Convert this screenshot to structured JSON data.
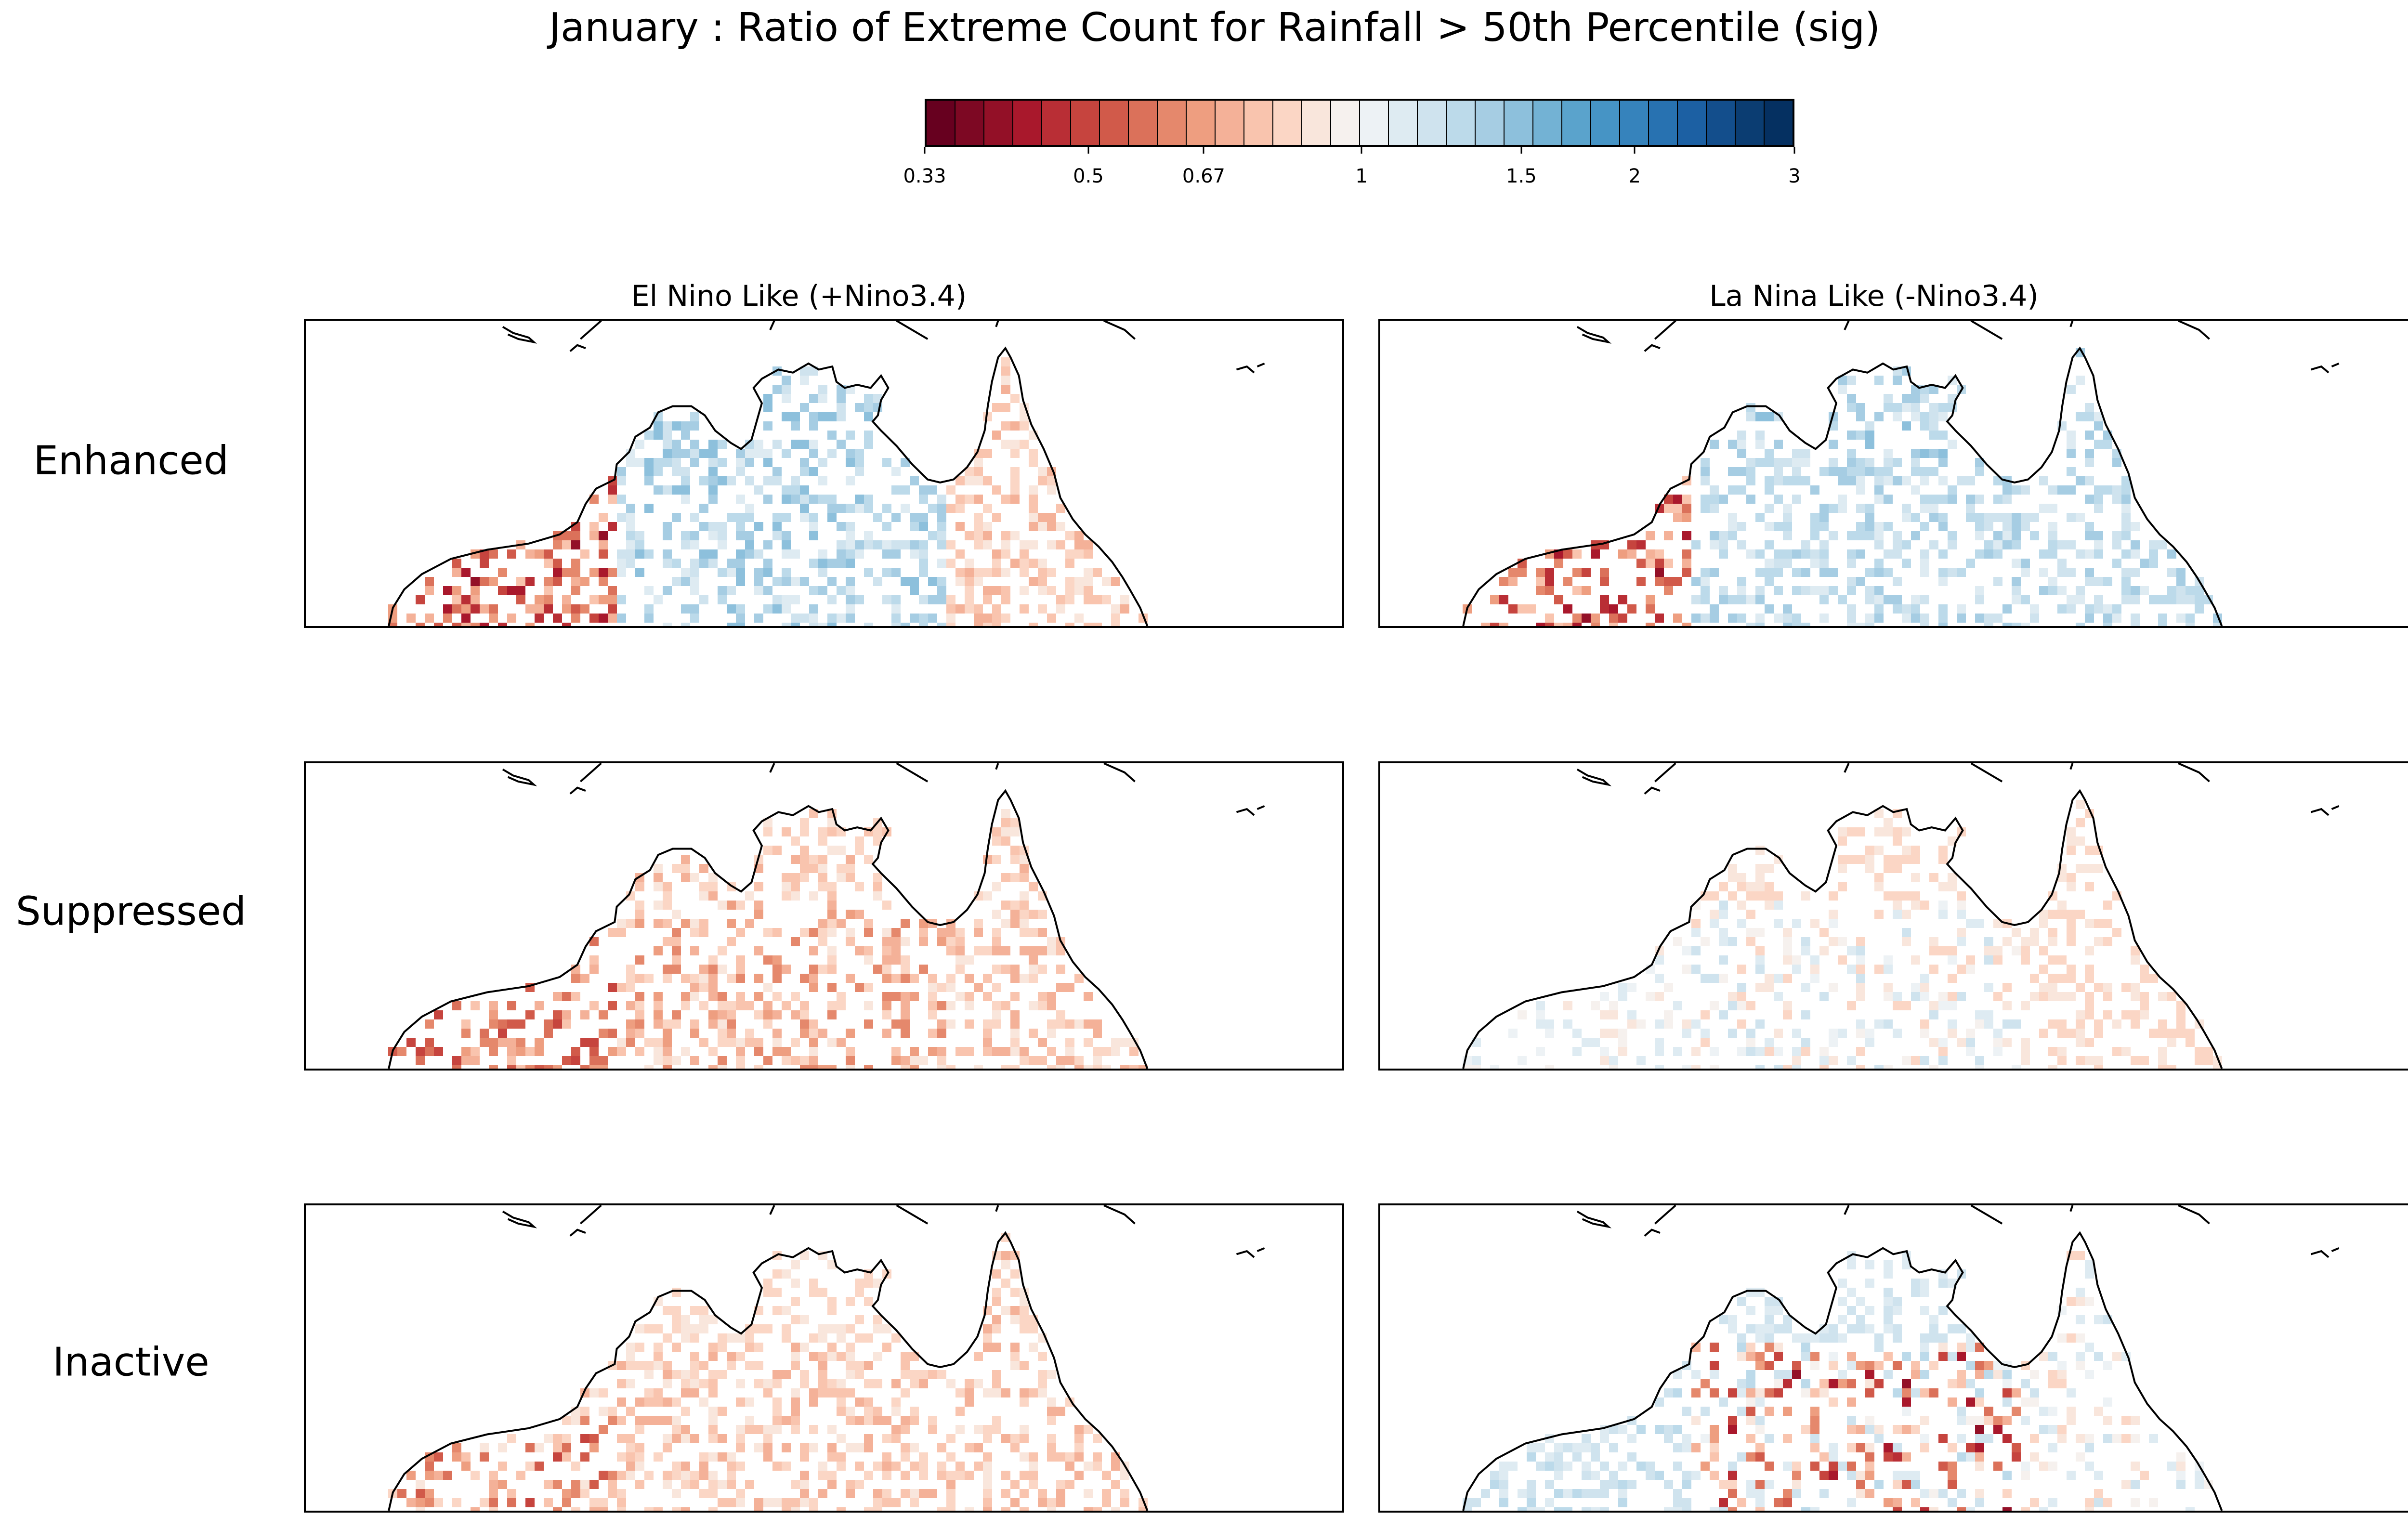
{
  "chart_data": {
    "type": "heatmap",
    "title": "January : Ratio of Extreme Count for Rainfall > 50th Percentile (sig)",
    "colorbar": {
      "ticks": [
        "0.33",
        "0.5",
        "0.67",
        "1",
        "1.5",
        "2",
        "3"
      ],
      "range": [
        0.33,
        3
      ],
      "scale": "log",
      "colors": [
        "#67001f",
        "#7d0823",
        "#931027",
        "#a9182c",
        "#b92e35",
        "#c6443e",
        "#d15a4a",
        "#db715a",
        "#e5886c",
        "#ee9e80",
        "#f4b198",
        "#f9c4ae",
        "#fbd6c5",
        "#f9e6dc",
        "#f6f1ee",
        "#edf2f5",
        "#deebf2",
        "#cfe3ee",
        "#bcdaea",
        "#a6cde3",
        "#8dc0dc",
        "#73b2d4",
        "#5aa3cc",
        "#4694c5",
        "#3683bc",
        "#2872b1",
        "#1c60a3",
        "#134e8c",
        "#0b3d72",
        "#053061"
      ]
    },
    "columns": [
      "El Nino Like (+Nino3.4)",
      "La Nina Like (-Nino3.4)"
    ],
    "rows": [
      "Enhanced",
      "Suppressed",
      "Inactive"
    ],
    "panels": [
      {
        "row": "Enhanced",
        "column": "El Nino Like (+Nino3.4)",
        "west_coast": "reduced (0.4-0.8)",
        "north_coast": "increased (1.1-1.5)",
        "interior": "increased (1.1-1.5)",
        "east_gulf": "reduced (0.7-0.9)"
      },
      {
        "row": "Enhanced",
        "column": "La Nina Like (-Nino3.4)",
        "west_coast": "reduced (0.4-0.8)",
        "north_coast": "increased (1.1-1.5)",
        "interior": "increased (1.1-1.4)",
        "east_gulf": "increased (1.1-1.4)"
      },
      {
        "row": "Suppressed",
        "column": "El Nino Like (+Nino3.4)",
        "west_coast": "reduced (0.5-0.8)",
        "north_coast": "reduced (0.7-0.9)",
        "interior": "reduced (0.6-0.9)",
        "east_gulf": "reduced (0.7-0.9)"
      },
      {
        "row": "Suppressed",
        "column": "La Nina Like (-Nino3.4)",
        "west_coast": "mixed (0.9-1.1)",
        "north_coast": "reduced (0.8-0.9)",
        "interior": "mixed (0.8-1.2)",
        "east_gulf": "reduced (0.8-0.9)"
      },
      {
        "row": "Inactive",
        "column": "El Nino Like (+Nino3.4)",
        "west_coast": "reduced (0.5-0.9)",
        "north_coast": "reduced (0.8-0.9)",
        "interior": "reduced (0.7-0.9)",
        "east_gulf": "reduced (0.7-0.9)"
      },
      {
        "row": "Inactive",
        "column": "La Nina Like (-Nino3.4)",
        "west_coast": "increased (1.1-1.3)",
        "north_coast": "increased (1.1-1.2)",
        "interior": "mixed (0.4-1.3)",
        "east_gulf": "mixed (0.8-1.2)"
      }
    ]
  }
}
